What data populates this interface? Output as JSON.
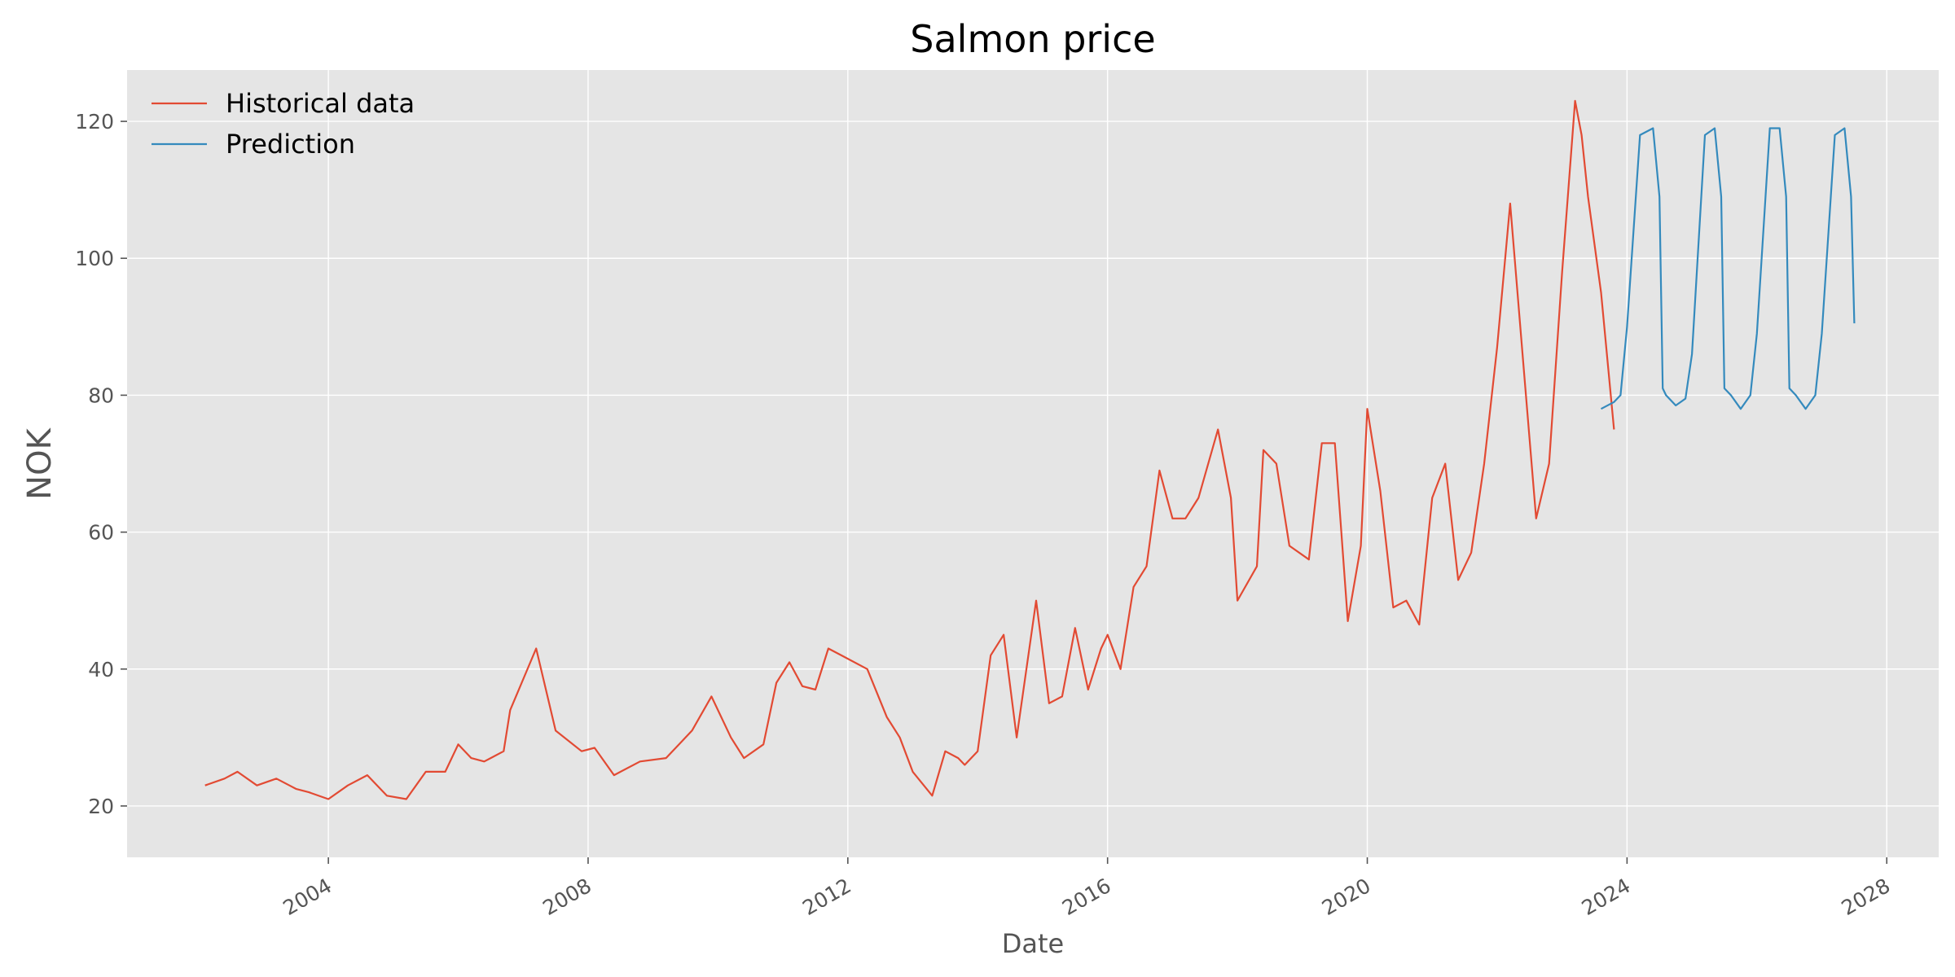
{
  "chart_data": {
    "type": "line",
    "title": "Salmon price",
    "xlabel": "Date",
    "ylabel": "NOK",
    "xlim": [
      2000.9,
      2028.8
    ],
    "ylim": [
      12.5,
      127.5
    ],
    "x_ticks": [
      2004,
      2008,
      2012,
      2016,
      2020,
      2024,
      2028
    ],
    "y_ticks": [
      20,
      40,
      60,
      80,
      100,
      120
    ],
    "grid": true,
    "legend_position": "top-left",
    "colors": {
      "background": "#E5E5E5",
      "grid": "#FFFFFF",
      "historical": "#E24A33",
      "prediction": "#348ABD"
    },
    "series": [
      {
        "name": "Historical data",
        "color": "#E24A33",
        "x": [
          2002.1,
          2002.4,
          2002.6,
          2002.9,
          2003.2,
          2003.4,
          2003.5,
          2003.7,
          2004.0,
          2004.3,
          2004.6,
          2004.9,
          2005.2,
          2005.5,
          2005.8,
          2006.0,
          2006.2,
          2006.4,
          2006.5,
          2006.7,
          2006.8,
          2007.2,
          2007.5,
          2007.9,
          2008.1,
          2008.4,
          2008.8,
          2009.2,
          2009.4,
          2009.6,
          2009.9,
          2010.2,
          2010.4,
          2010.7,
          2010.9,
          2011.1,
          2011.3,
          2011.5,
          2011.7,
          2011.9,
          2012.3,
          2012.6,
          2012.8,
          2013.0,
          2013.3,
          2013.5,
          2013.7,
          2013.8,
          2014.0,
          2014.2,
          2014.4,
          2014.6,
          2014.9,
          2015.1,
          2015.3,
          2015.5,
          2015.7,
          2015.9,
          2016.0,
          2016.2,
          2016.4,
          2016.6,
          2016.8,
          2017.0,
          2017.2,
          2017.4,
          2017.7,
          2017.9,
          2018.0,
          2018.3,
          2018.4,
          2018.6,
          2018.8,
          2019.1,
          2019.3,
          2019.5,
          2019.7,
          2019.9,
          2020.0,
          2020.2,
          2020.4,
          2020.6,
          2020.8,
          2021.0,
          2021.2,
          2021.4,
          2021.6,
          2021.8,
          2022.0,
          2022.2,
          2022.4,
          2022.6,
          2022.8,
          2023.0,
          2023.2,
          2023.3,
          2023.4,
          2023.6,
          2023.8
        ],
        "values": [
          23,
          24,
          25,
          23,
          24,
          23,
          22.5,
          22,
          21,
          23,
          24.5,
          21.5,
          21,
          25,
          25,
          29,
          27,
          26.5,
          27,
          28,
          34,
          43,
          31,
          28,
          28.5,
          24.5,
          26.5,
          27,
          29,
          31,
          36,
          30,
          27,
          29,
          38,
          41,
          37.5,
          37,
          43,
          42,
          40,
          33,
          30,
          25,
          21.5,
          28,
          27,
          26,
          28,
          42,
          45,
          30,
          50,
          35,
          36,
          46,
          37,
          43,
          45,
          40,
          52,
          55,
          69,
          62,
          62,
          65,
          75,
          65,
          50,
          55,
          72,
          70,
          58,
          56,
          73,
          73,
          47,
          58,
          78,
          66,
          49,
          50,
          46.5,
          65,
          70,
          53,
          57,
          70,
          87,
          108,
          85,
          62,
          70,
          98,
          123,
          118,
          109,
          95,
          75
        ]
      },
      {
        "name": "Prediction",
        "color": "#348ABD",
        "x": [
          2023.6,
          2023.8,
          2023.9,
          2024.0,
          2024.2,
          2024.4,
          2024.5,
          2024.55,
          2024.6,
          2024.75,
          2024.9,
          2025.0,
          2025.2,
          2025.35,
          2025.45,
          2025.5,
          2025.6,
          2025.75,
          2025.9,
          2026.0,
          2026.2,
          2026.35,
          2026.45,
          2026.5,
          2026.6,
          2026.75,
          2026.9,
          2027.0,
          2027.2,
          2027.35,
          2027.45,
          2027.5
        ],
        "values": [
          78,
          79,
          80,
          90,
          118,
          119,
          109,
          81,
          80,
          78.5,
          79.5,
          86,
          118,
          119,
          109,
          81,
          80,
          78,
          80,
          89,
          119,
          119,
          109,
          81,
          80,
          78,
          80,
          89,
          118,
          119,
          109,
          90.5
        ]
      }
    ]
  }
}
